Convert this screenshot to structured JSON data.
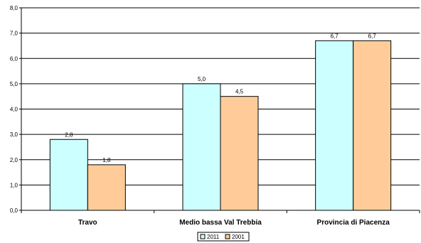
{
  "chart_data": {
    "type": "bar",
    "categories": [
      "Travo",
      "Medio bassa Val Trebbia",
      "Provincia di Piacenza"
    ],
    "series": [
      {
        "name": "2011",
        "values": [
          2.8,
          5.0,
          6.7
        ],
        "labels": [
          "2,8",
          "5,0",
          "6,7"
        ],
        "color": "#CCFFFF"
      },
      {
        "name": "2001",
        "values": [
          1.8,
          4.5,
          6.7
        ],
        "labels": [
          "1,8",
          "4,5",
          "6,7"
        ],
        "color": "#FFCC99"
      }
    ],
    "ylim": [
      0,
      8
    ],
    "yticks": [
      0,
      1,
      2,
      3,
      4,
      5,
      6,
      7,
      8
    ],
    "ytick_labels": [
      "0,0",
      "1,0",
      "2,0",
      "3,0",
      "4,0",
      "5,0",
      "6,0",
      "7,0",
      "8,0"
    ],
    "grid": true,
    "legend_position": "bottom",
    "title": "",
    "xlabel": "",
    "ylabel": ""
  }
}
